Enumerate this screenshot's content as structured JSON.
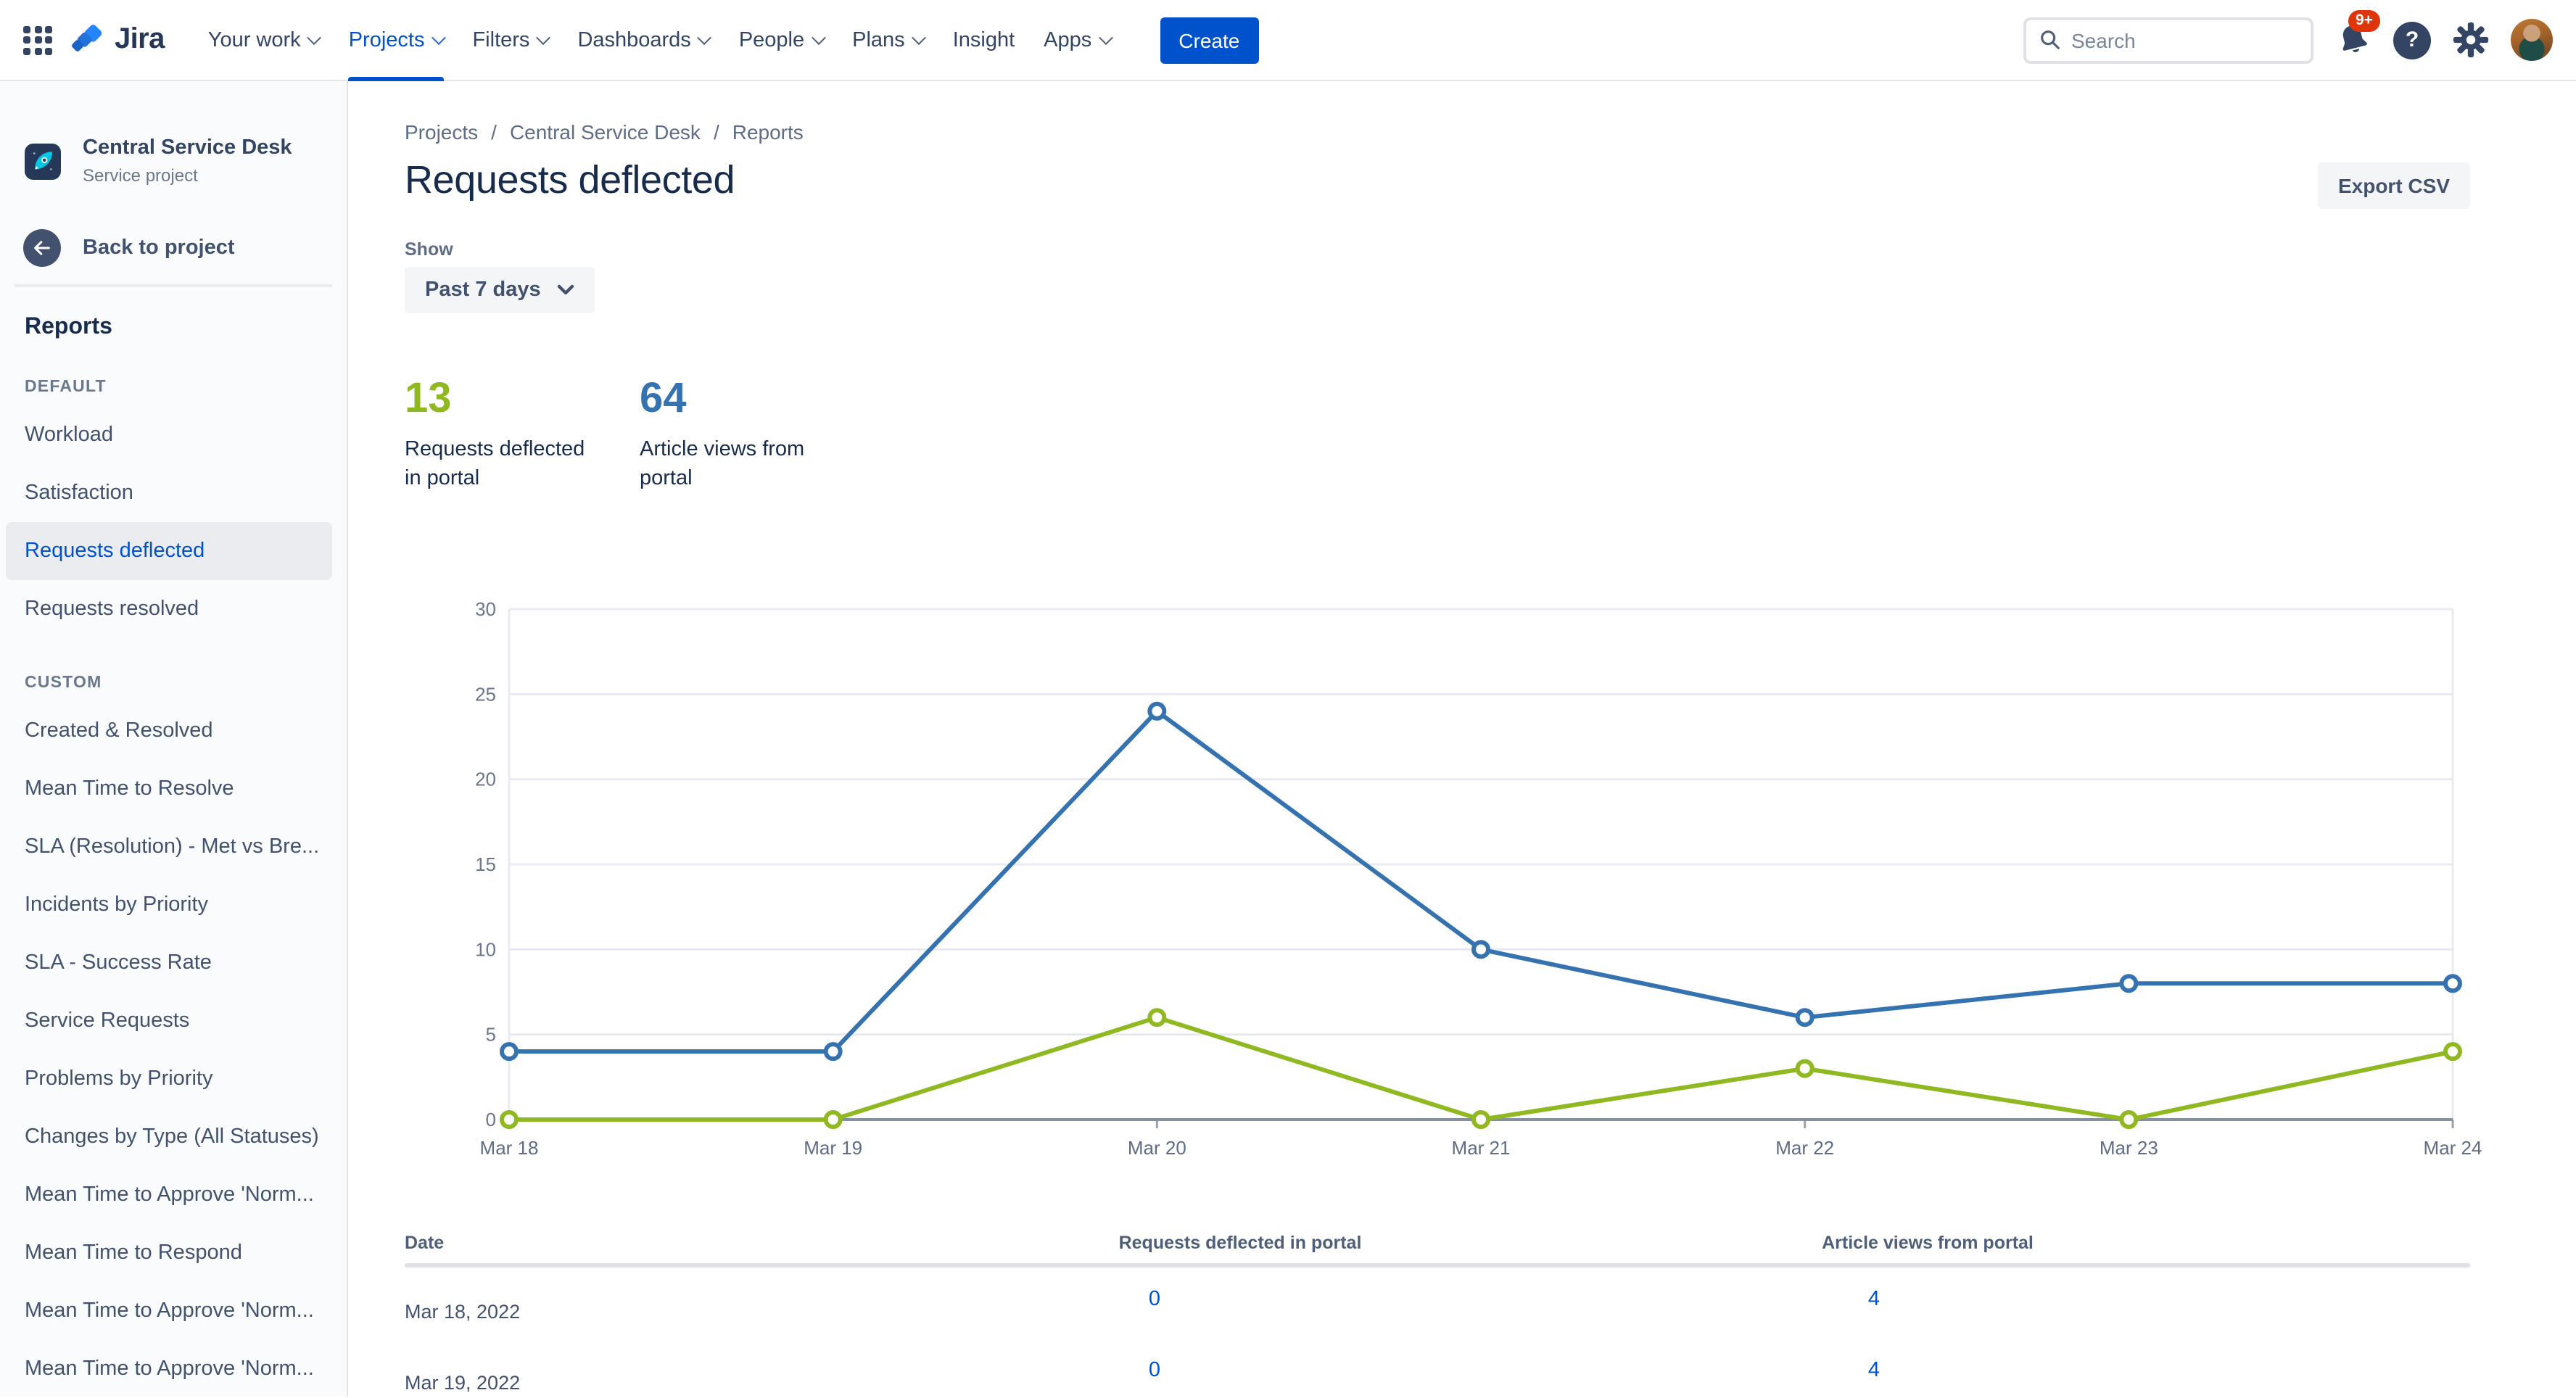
{
  "nav": {
    "brand": "Jira",
    "items": [
      {
        "label": "Your work",
        "chevron": true,
        "active": false
      },
      {
        "label": "Projects",
        "chevron": true,
        "active": true
      },
      {
        "label": "Filters",
        "chevron": true,
        "active": false
      },
      {
        "label": "Dashboards",
        "chevron": true,
        "active": false
      },
      {
        "label": "People",
        "chevron": true,
        "active": false
      },
      {
        "label": "Plans",
        "chevron": true,
        "active": false
      },
      {
        "label": "Insight",
        "chevron": false,
        "active": false
      },
      {
        "label": "Apps",
        "chevron": true,
        "active": false
      }
    ],
    "create_label": "Create",
    "search_placeholder": "Search",
    "notification_count": "9+"
  },
  "icons": {
    "help_glyph": "?"
  },
  "sidebar": {
    "project_name": "Central Service Desk",
    "project_type": "Service project",
    "back_label": "Back to project",
    "heading": "Reports",
    "selected_item": "Requests deflected",
    "groups": [
      {
        "label": "DEFAULT",
        "items": [
          "Workload",
          "Satisfaction",
          "Requests deflected",
          "Requests resolved"
        ]
      },
      {
        "label": "CUSTOM",
        "items": [
          "Created & Resolved",
          "Mean Time to Resolve",
          "SLA (Resolution) - Met vs Bre...",
          "Incidents by Priority",
          "SLA - Success Rate",
          "Service Requests",
          "Problems by Priority",
          "Changes by Type (All Statuses)",
          "Mean Time to Approve 'Norm...",
          "Mean Time to Respond",
          "Mean Time to Approve 'Norm...",
          "Mean Time to Approve 'Norm..."
        ]
      }
    ]
  },
  "main": {
    "breadcrumb": [
      "Projects",
      "Central Service Desk",
      "Reports"
    ],
    "title": "Requests deflected",
    "export_label": "Export CSV",
    "show_label": "Show",
    "period": "Past 7 days",
    "stats": [
      {
        "value": "13",
        "label": "Requests deflected in portal",
        "color": "#8FB821"
      },
      {
        "value": "64",
        "label": "Article views from portal",
        "color": "#3572B0"
      }
    ]
  },
  "chart_data": {
    "type": "line",
    "categories": [
      "Mar 18",
      "Mar 19",
      "Mar 20",
      "Mar 21",
      "Mar 22",
      "Mar 23",
      "Mar 24"
    ],
    "series": [
      {
        "name": "Requests deflected in portal",
        "color": "#8FB821",
        "values": [
          0,
          0,
          6,
          0,
          3,
          0,
          4
        ]
      },
      {
        "name": "Article views from portal",
        "color": "#3572B0",
        "values": [
          4,
          4,
          24,
          10,
          6,
          8,
          8
        ]
      }
    ],
    "title": "",
    "xlabel": "",
    "ylabel": "",
    "ylim": [
      0,
      30
    ],
    "yticks": [
      0,
      5,
      10,
      15,
      20,
      25,
      30
    ],
    "ytick_step": 5,
    "grid": true,
    "legend": false
  },
  "table": {
    "headers": [
      "Date",
      "Requests deflected in portal",
      "Article views from portal"
    ],
    "rows": [
      {
        "date": "Mar 18, 2022",
        "deflected": "0",
        "views": "4"
      },
      {
        "date": "Mar 19, 2022",
        "deflected": "0",
        "views": "4"
      }
    ]
  }
}
